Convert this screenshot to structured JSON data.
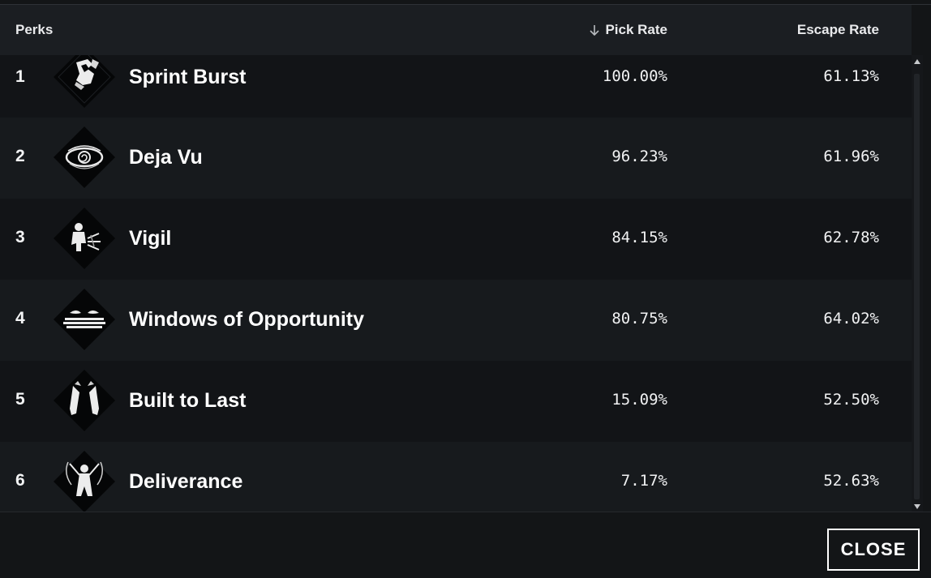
{
  "header": {
    "perks_label": "Perks",
    "pick_rate_label": "Pick Rate",
    "escape_rate_label": "Escape Rate",
    "sort_icon": "arrow-down-icon"
  },
  "rows": [
    {
      "rank": "1",
      "name": "Sprint Burst",
      "pick_rate": "100.00%",
      "escape_rate": "61.13%",
      "icon": "sprint-burst-icon"
    },
    {
      "rank": "2",
      "name": "Deja Vu",
      "pick_rate": "96.23%",
      "escape_rate": "61.96%",
      "icon": "deja-vu-icon"
    },
    {
      "rank": "3",
      "name": "Vigil",
      "pick_rate": "84.15%",
      "escape_rate": "62.78%",
      "icon": "vigil-icon"
    },
    {
      "rank": "4",
      "name": "Windows of Opportunity",
      "pick_rate": "80.75%",
      "escape_rate": "64.02%",
      "icon": "windows-of-opportunity-icon"
    },
    {
      "rank": "5",
      "name": "Built to Last",
      "pick_rate": "15.09%",
      "escape_rate": "52.50%",
      "icon": "built-to-last-icon"
    },
    {
      "rank": "6",
      "name": "Deliverance",
      "pick_rate": "7.17%",
      "escape_rate": "52.63%",
      "icon": "deliverance-icon"
    }
  ],
  "footer": {
    "close_label": "CLOSE"
  }
}
